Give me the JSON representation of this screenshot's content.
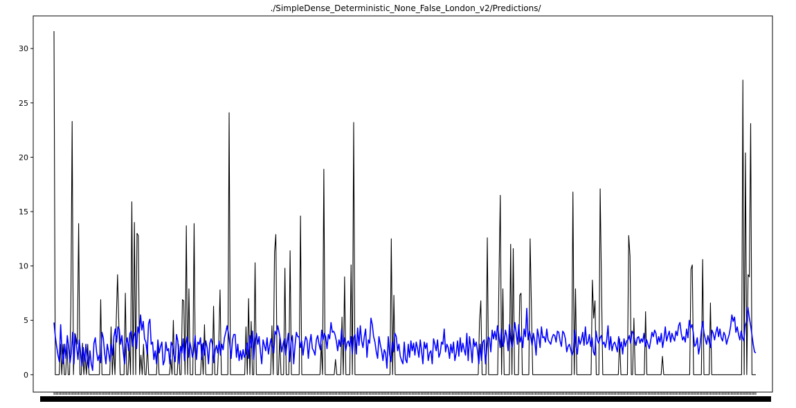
{
  "chart_data": {
    "type": "line",
    "title": "./SimpleDense_Deterministic_None_False_London_v2/Predictions/",
    "xlabel": "",
    "ylabel": "",
    "ylim": [
      -1.6,
      33
    ],
    "yticks": [
      "0",
      "5",
      "10",
      "15",
      "20",
      "25",
      "30"
    ],
    "grid": false,
    "series": [
      {
        "color": "#000000",
        "values": [
          31.6,
          0,
          0,
          0,
          0,
          2.8,
          0,
          2.8,
          0,
          0,
          2.8,
          0,
          0,
          6.2,
          23.3,
          0,
          3.8,
          3.4,
          2.8,
          13.9,
          0,
          0,
          2.9,
          0,
          1.8,
          0,
          2.8,
          0,
          0,
          0,
          0,
          0,
          0,
          0,
          0,
          0,
          6.9,
          0,
          0,
          0,
          0,
          0,
          0,
          0,
          4.4,
          0,
          2.8,
          0,
          5.0,
          9.2,
          4.6,
          0,
          0,
          0,
          0,
          7.5,
          0,
          0,
          2.8,
          0,
          15.9,
          0,
          14.0,
          0,
          13.0,
          12.8,
          0,
          1.8,
          0,
          2.8,
          0,
          0,
          2.8,
          0,
          0,
          0,
          0,
          0,
          0,
          0,
          2.8,
          0,
          0,
          0,
          0,
          0,
          0,
          0,
          0,
          0,
          1.4,
          0,
          5.0,
          0,
          0,
          0,
          2.8,
          0,
          0,
          6.9,
          6.8,
          0,
          13.7,
          0,
          7.9,
          0,
          0,
          0,
          13.9,
          0,
          0,
          0,
          0,
          0,
          2.8,
          0,
          4.6,
          0,
          0,
          0,
          0,
          0,
          0,
          6.3,
          0,
          0,
          0,
          2.8,
          7.8,
          0,
          0,
          0,
          0,
          0,
          0,
          24.1,
          0,
          0,
          0,
          0,
          0,
          0,
          0,
          0,
          0,
          0,
          0,
          0,
          4.4,
          0,
          7.0,
          0,
          4.9,
          0,
          0,
          10.3,
          0,
          0,
          0,
          0,
          0,
          0,
          0,
          0,
          0,
          0,
          0,
          0,
          4.5,
          0,
          11.3,
          12.9,
          0,
          0,
          3.5,
          0,
          0,
          0,
          9.8,
          0,
          0,
          0,
          11.4,
          0,
          0,
          0,
          0,
          0,
          0,
          0,
          14.6,
          0,
          0,
          0,
          0,
          0,
          0,
          0,
          0,
          0,
          0,
          0,
          0,
          0,
          0,
          0,
          2.8,
          0,
          18.9,
          0,
          0,
          0,
          0,
          0,
          0,
          0,
          0,
          1.4,
          0,
          0,
          0,
          0,
          5.3,
          0,
          9.0,
          0,
          0,
          0,
          0,
          10.1,
          0,
          23.2,
          0,
          0,
          0,
          0,
          0,
          0,
          0,
          0,
          0,
          0,
          0,
          0,
          0,
          0,
          0,
          0,
          0,
          0,
          0,
          0,
          0,
          0,
          0,
          0,
          0,
          0,
          0,
          0,
          12.5,
          0,
          7.3,
          0,
          0,
          0,
          0,
          0,
          0,
          0,
          0,
          0,
          0,
          0,
          0,
          0,
          0,
          0,
          0,
          0,
          0,
          0,
          0,
          0,
          0,
          0,
          0,
          0,
          0,
          0,
          0,
          0,
          0,
          0,
          0,
          0,
          0,
          0,
          0,
          0,
          0,
          0,
          0,
          0,
          0,
          0,
          0,
          0,
          0,
          0,
          0,
          0,
          0,
          0,
          0,
          0,
          0,
          0,
          0,
          0,
          0,
          0,
          0,
          0,
          0,
          0,
          0,
          0,
          4.9,
          6.8,
          0,
          0,
          0,
          0,
          12.6,
          0,
          0,
          0,
          0,
          0,
          0,
          0,
          0,
          8.8,
          16.5,
          0,
          7.9,
          0,
          0,
          0,
          0,
          0,
          12.0,
          0,
          11.6,
          0,
          0,
          0,
          0,
          7.3,
          7.5,
          0,
          0,
          0,
          0,
          0,
          0,
          12.5,
          6.3,
          0,
          0,
          0,
          0,
          0,
          0,
          0,
          0,
          0,
          0,
          0,
          0,
          0,
          0,
          0,
          0,
          0,
          0,
          0,
          0,
          0,
          0,
          0,
          0,
          0,
          0,
          0,
          0,
          0,
          0,
          0,
          16.8,
          0,
          7.9,
          0,
          0,
          0,
          0,
          0,
          0,
          0,
          0,
          0,
          0,
          0,
          0,
          8.7,
          5.2,
          6.8,
          0,
          0,
          0,
          17.1,
          8.4,
          0,
          0,
          0,
          0,
          0,
          0,
          0,
          0,
          0,
          0,
          0,
          0,
          0,
          3.3,
          0,
          0,
          0,
          0,
          0,
          0,
          12.8,
          10.9,
          0,
          0,
          5.2,
          0,
          0,
          0,
          0,
          0,
          0,
          0,
          0,
          5.8,
          0,
          0,
          0,
          0,
          0,
          0,
          0,
          0,
          0,
          0,
          0,
          0,
          1.7,
          0,
          0,
          0,
          0,
          0,
          0,
          0,
          0,
          0,
          0,
          0,
          0,
          0,
          0,
          0,
          0,
          0,
          0,
          0,
          0,
          0,
          9.7,
          10.1,
          0,
          0,
          0,
          0,
          0,
          0,
          0,
          10.6,
          0,
          0,
          0,
          0,
          0,
          6.6,
          0,
          0,
          0,
          0,
          0,
          0,
          0,
          0,
          0,
          0,
          0,
          0,
          0,
          0,
          0,
          0,
          0,
          0,
          0,
          0,
          0,
          0,
          0,
          0,
          27.1,
          0,
          20.4,
          0,
          9.2,
          9.0,
          23.1,
          0,
          0,
          0,
          0
        ]
      },
      {
        "color": "#0000ff",
        "values": [
          4.8,
          3.5,
          2.6,
          1.8,
          1.2,
          4.6,
          2.2,
          1.0,
          2.8,
          1.5,
          3.6,
          2.5,
          1.1,
          2.0,
          3.9,
          1.0,
          3.7,
          2.6,
          1.4,
          3.2,
          2.0,
          0.8,
          2.5,
          1.2,
          2.8,
          1.3,
          0.6,
          2.2,
          1.0,
          0.4,
          2.9,
          3.4,
          2.1,
          1.3,
          1.8,
          1.1,
          3.9,
          3.4,
          2.0,
          1.0,
          2.8,
          2.1,
          1.2,
          2.8,
          1.8,
          3.5,
          4.2,
          3.0,
          4.4,
          4.2,
          2.8,
          3.6,
          2.1,
          1.0,
          2.8,
          3.4,
          2.2,
          3.8,
          4.0,
          2.6,
          3.5,
          3.9,
          2.4,
          4.4,
          3.8,
          5.5,
          4.1,
          4.9,
          3.3,
          3.0,
          1.9,
          4.7,
          5.1,
          2.8,
          3.0,
          1.4,
          2.2,
          1.0,
          3.2,
          2.0,
          2.6,
          3.0,
          0.9,
          1.3,
          3.0,
          2.2,
          2.4,
          1.0,
          3.0,
          2.7,
          1.8,
          1.2,
          3.7,
          3.1,
          1.0,
          2.6,
          2.0,
          3.3,
          1.3,
          2.8,
          3.5,
          1.6,
          3.0,
          2.4,
          1.6,
          2.2,
          3.6,
          1.4,
          3.0,
          2.8,
          3.4,
          1.4,
          2.9,
          1.8,
          3.1,
          2.5,
          1.0,
          2.9,
          3.3,
          2.8,
          1.1,
          2.2,
          2.7,
          2.0,
          3.1,
          1.8,
          2.8,
          2.3,
          3.4,
          3.9,
          4.5,
          3.8,
          2.8,
          1.5,
          3.2,
          3.7,
          3.7,
          1.6,
          2.8,
          1.3,
          2.2,
          1.4,
          2.3,
          1.6,
          1.9,
          2.9,
          1.5,
          3.6,
          2.5,
          4.0,
          1.4,
          3.2,
          3.8,
          2.8,
          3.5,
          2.1,
          1.0,
          3.2,
          2.7,
          2.2,
          3.4,
          1.9,
          2.7,
          3.3,
          2.6,
          2.0,
          4.0,
          3.7,
          4.5,
          3.9,
          3.2,
          2.1,
          2.8,
          3.3,
          1.8,
          2.9,
          3.8,
          1.2,
          3.0,
          3.6,
          1.0,
          2.7,
          3.9,
          3.5,
          3.5,
          2.5,
          3.1,
          1.8,
          2.8,
          3.5,
          3.2,
          1.5,
          2.9,
          3.7,
          2.4,
          2.2,
          1.8,
          3.2,
          3.6,
          2.8,
          2.3,
          4.1,
          3.2,
          3.8,
          3.5,
          2.4,
          3.7,
          3.3,
          4.8,
          3.9,
          4.0,
          3.7,
          3.1,
          2.2,
          3.2,
          2.6,
          4.2,
          2.8,
          3.4,
          2.2,
          2.9,
          3.1,
          2.6,
          3.5,
          1.9,
          3.4,
          3.7,
          1.9,
          4.3,
          2.7,
          4.5,
          3.1,
          2.5,
          3.5,
          4.2,
          1.6,
          3.2,
          2.9,
          5.2,
          4.6,
          3.5,
          3.0,
          2.1,
          1.5,
          3.5,
          2.8,
          2.2,
          1.3,
          2.3,
          2.0,
          0.6,
          3.5,
          1.9,
          1.2,
          3.0,
          2.1,
          3.8,
          3.5,
          2.2,
          2.8,
          1.7,
          1.3,
          1.0,
          3.0,
          1.4,
          1.1,
          2.8,
          1.6,
          3.1,
          2.2,
          2.9,
          1.8,
          3.0,
          2.4,
          1.6,
          3.2,
          2.2,
          1.0,
          3.0,
          2.4,
          2.9,
          1.3,
          2.0,
          2.2,
          1.0,
          3.3,
          2.8,
          2.2,
          3.2,
          1.6,
          2.0,
          3.0,
          2.8,
          4.2,
          2.1,
          2.8,
          2.5,
          1.5,
          2.8,
          2.0,
          3.0,
          1.3,
          2.0,
          3.1,
          1.7,
          3.4,
          2.1,
          2.9,
          2.3,
          1.8,
          3.8,
          1.3,
          3.5,
          2.5,
          1.1,
          3.3,
          2.6,
          3.0,
          2.2,
          1.0,
          2.8,
          1.3,
          3.0,
          3.2,
          1.0,
          2.4,
          3.5,
          3.3,
          2.1,
          4.1,
          3.3,
          4.0,
          3.2,
          4.5,
          3.7,
          2.5,
          4.2,
          2.6,
          3.0,
          4.1,
          3.5,
          2.2,
          4.6,
          3.2,
          2.5,
          3.6,
          4.8,
          3.9,
          2.8,
          4.6,
          3.0,
          3.5,
          2.5,
          4.2,
          3.5,
          6.1,
          3.2,
          4.0,
          3.4,
          2.7,
          3.8,
          3.1,
          1.8,
          4.2,
          3.5,
          2.5,
          4.4,
          3.4,
          3.5,
          3.0,
          4.2,
          3.2,
          3.0,
          2.8,
          3.4,
          3.7,
          3.6,
          3.0,
          4.0,
          3.9,
          3.1,
          2.6,
          4.0,
          3.8,
          3.3,
          2.1,
          2.6,
          2.8,
          2.3,
          1.8,
          2.2,
          4.1,
          2.6,
          1.9,
          3.5,
          2.8,
          3.2,
          3.9,
          2.7,
          4.4,
          2.8,
          3.0,
          3.7,
          2.6,
          3.4,
          2.1,
          1.8,
          4.0,
          3.2,
          2.9,
          3.4,
          3.6,
          2.8,
          3.0,
          2.5,
          3.2,
          4.5,
          2.3,
          3.5,
          2.2,
          2.8,
          3.0,
          2.6,
          2.1,
          3.5,
          2.4,
          3.0,
          1.9,
          3.3,
          2.6,
          3.1,
          3.2,
          3.6,
          2.9,
          4.0,
          3.8,
          3.2,
          2.7,
          3.4,
          3.5,
          2.9,
          3.3,
          3.0,
          3.8,
          2.6,
          3.2,
          2.8,
          2.4,
          3.1,
          3.9,
          3.5,
          4.1,
          3.8,
          2.8,
          3.5,
          3.0,
          3.8,
          2.5,
          3.3,
          4.4,
          3.1,
          3.6,
          4.0,
          3.0,
          3.8,
          3.4,
          3.1,
          4.0,
          3.6,
          4.5,
          4.8,
          3.8,
          3.2,
          3.5,
          3.0,
          4.2,
          3.4,
          5.0,
          4.3,
          4.6,
          3.9,
          2.6,
          2.8,
          3.4,
          1.9,
          2.6,
          3.9,
          4.9,
          3.9,
          3.3,
          2.8,
          3.6,
          3.0,
          2.5,
          4.1,
          3.8,
          3.2,
          3.9,
          4.4,
          3.5,
          4.2,
          3.4,
          3.1,
          3.9,
          3.6,
          2.8,
          3.3,
          3.7,
          4.4,
          5.5,
          4.9,
          5.3,
          3.9,
          4.4,
          3.7,
          3.2,
          4.0,
          3.4,
          3.1,
          4.5,
          4.9,
          6.2,
          5.3,
          4.6,
          3.7,
          2.8,
          2.1,
          2.0
        ]
      }
    ]
  }
}
